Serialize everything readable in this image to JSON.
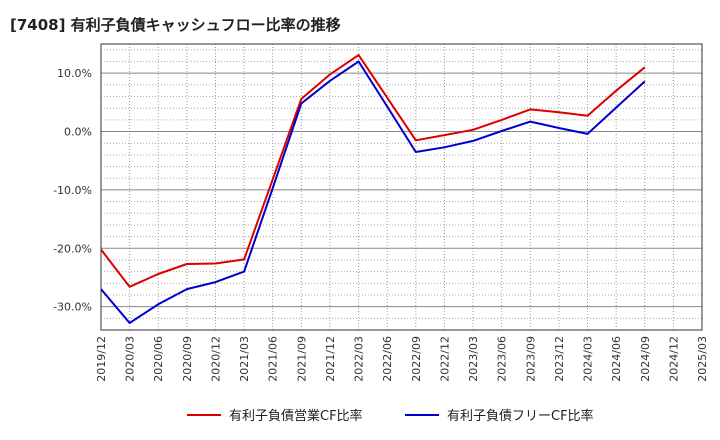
{
  "chart_data": {
    "type": "line",
    "title": "[7408]  有利子負債キャッシュフロー比率の推移",
    "x": [
      "2019/12",
      "2020/03",
      "2020/06",
      "2020/09",
      "2020/12",
      "2021/03",
      "2021/06",
      "2021/09",
      "2021/12",
      "2022/03",
      "2022/06",
      "2022/09",
      "2022/12",
      "2023/03",
      "2023/06",
      "2023/09",
      "2023/12",
      "2024/03",
      "2024/06",
      "2024/09",
      "2024/12",
      "2025/03"
    ],
    "ylim": [
      -34,
      15
    ],
    "yticks": [
      10,
      0,
      -10,
      -20,
      -30
    ],
    "ytick_labels": [
      "10.0%",
      "0.0%",
      "-10.0%",
      "-20.0%",
      "-30.0%"
    ],
    "xlabel": "",
    "ylabel": "",
    "grid": true,
    "series": [
      {
        "name": "有利子負債営業CF比率",
        "color": "#dd0000",
        "values": [
          -20.2,
          -26.6,
          -24.4,
          -22.7,
          -22.6,
          -21.9,
          -8.2,
          5.6,
          9.8,
          13.1,
          5.8,
          -1.5,
          -0.6,
          0.3,
          2.0,
          3.8,
          3.3,
          2.7,
          7.0,
          11.0,
          null,
          null
        ]
      },
      {
        "name": "有利子負債フリーCF比率",
        "color": "#0000cc",
        "values": [
          -27.0,
          -32.8,
          -29.6,
          -27.0,
          -25.8,
          -24.0,
          -9.7,
          4.8,
          8.7,
          12.0,
          4.3,
          -3.5,
          -2.7,
          -1.6,
          0.1,
          1.7,
          0.6,
          -0.4,
          4.1,
          8.6,
          null,
          null
        ]
      }
    ]
  }
}
